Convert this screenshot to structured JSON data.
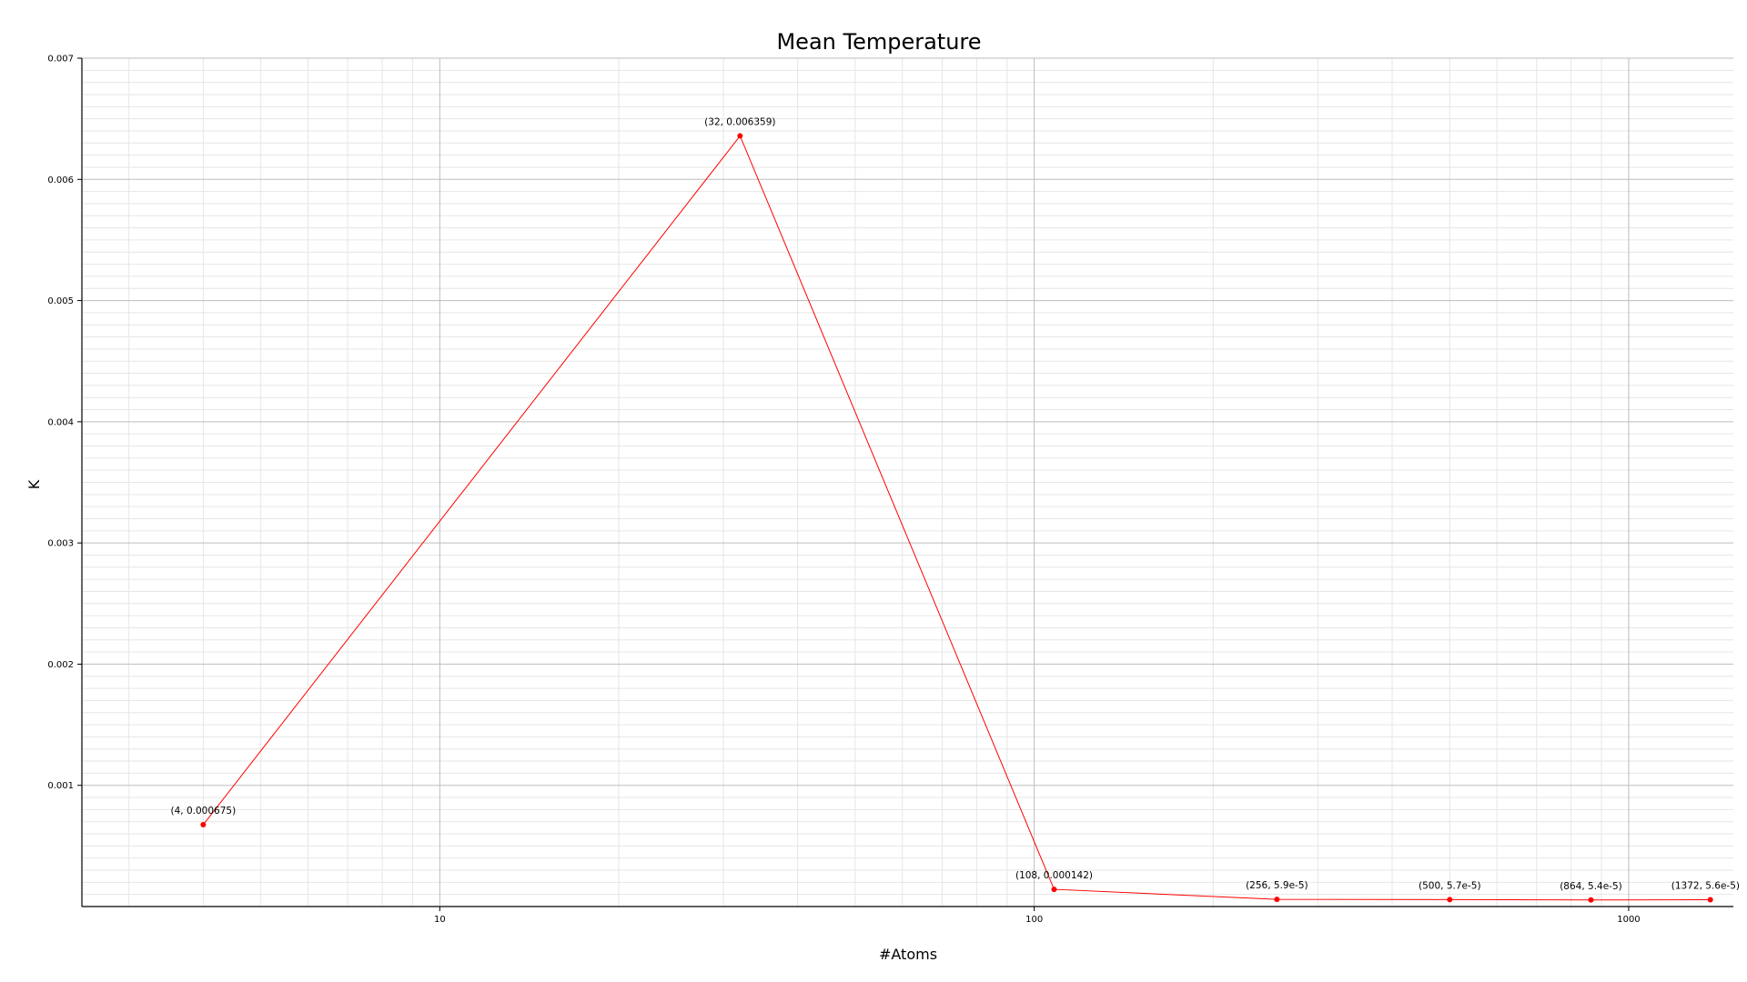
{
  "chart_data": {
    "type": "line",
    "title": "Mean Temperature",
    "xlabel": "#Atoms",
    "ylabel": "K",
    "x_scale": "log",
    "xlim": [
      2.5,
      1500
    ],
    "ylim": [
      0,
      0.007
    ],
    "grid": true,
    "x_ticks": [
      {
        "value": 10,
        "label": "10"
      },
      {
        "value": 100,
        "label": "100"
      },
      {
        "value": 1000,
        "label": "1000"
      }
    ],
    "y_ticks": [
      {
        "value": 0.001,
        "label": "0.001"
      },
      {
        "value": 0.002,
        "label": "0.002"
      },
      {
        "value": 0.003,
        "label": "0.003"
      },
      {
        "value": 0.004,
        "label": "0.004"
      },
      {
        "value": 0.005,
        "label": "0.005"
      },
      {
        "value": 0.006,
        "label": "0.006"
      },
      {
        "value": 0.007,
        "label": "0.007"
      }
    ],
    "color": "#ff0000",
    "series": [
      {
        "points": [
          {
            "x": 4,
            "y": 0.000675,
            "label": "(4, 0.000675)"
          },
          {
            "x": 32,
            "y": 0.006359,
            "label": "(32, 0.006359)"
          },
          {
            "x": 108,
            "y": 0.000142,
            "label": "(108, 0.000142)"
          },
          {
            "x": 256,
            "y": 5.9e-05,
            "label": "(256, 5.9e-5)"
          },
          {
            "x": 500,
            "y": 5.7e-05,
            "label": "(500, 5.7e-5)"
          },
          {
            "x": 864,
            "y": 5.4e-05,
            "label": "(864, 5.4e-5)"
          },
          {
            "x": 1372,
            "y": 5.6e-05,
            "label": "(1372, 5.6e-5)"
          }
        ]
      }
    ]
  }
}
